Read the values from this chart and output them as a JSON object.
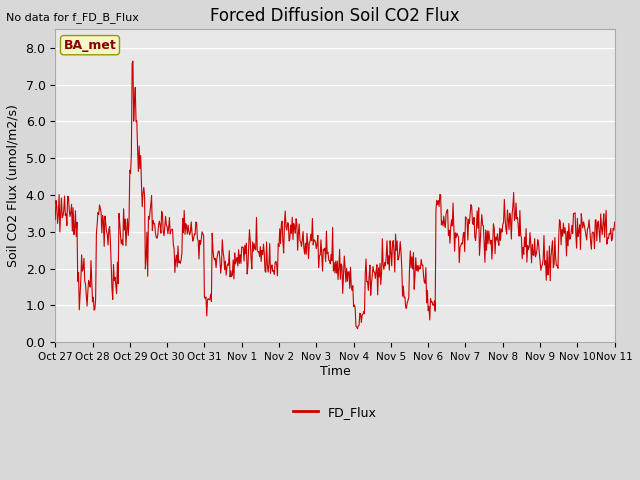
{
  "title": "Forced Diffusion Soil CO2 Flux",
  "xlabel": "Time",
  "ylabel": "Soil CO2 Flux (umol/m2/s)",
  "no_data_text": "No data for f_FD_B_Flux",
  "legend_label": "FD_Flux",
  "site_label": "BA_met",
  "line_color": "#cc0000",
  "bg_color": "#e0e0e0",
  "plot_bg_color": "#e8e8e8",
  "ylim": [
    0.0,
    8.5
  ],
  "yticks": [
    0.0,
    1.0,
    2.0,
    3.0,
    4.0,
    5.0,
    6.0,
    7.0,
    8.0
  ],
  "tick_labels": [
    "Oct 27",
    "Oct 28",
    "Oct 29",
    "Oct 30",
    "Oct 31",
    "Nov 1",
    "Nov 2",
    "Nov 3",
    "Nov 4",
    "Nov 5",
    "Nov 6",
    "Nov 7",
    "Nov 8",
    "Nov 9",
    "Nov 10",
    "Nov 11"
  ],
  "line_width": 0.8
}
